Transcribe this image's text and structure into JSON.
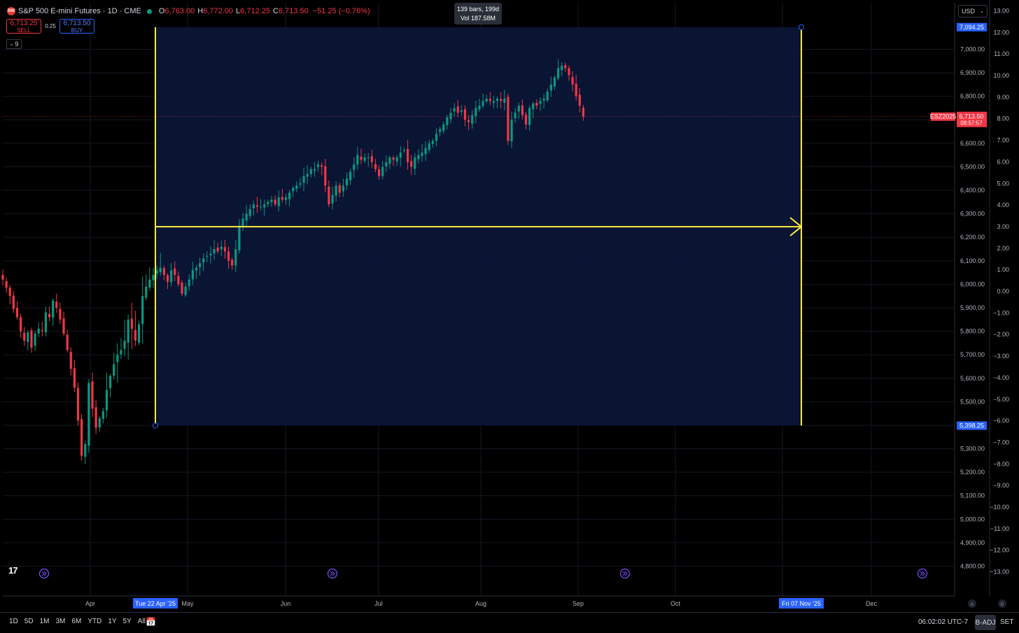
{
  "header": {
    "symbol_badge": "500",
    "title": "S&P 500 E-mini Futures · 1D · CME",
    "open_label": "O",
    "open_value": "6,763.00",
    "high_label": "H",
    "high_value": "6,772.00",
    "low_label": "L",
    "low_value": "6,712.25",
    "close_label": "C",
    "close_value": "6,713.50",
    "change": "−51.25 (−0.76%)"
  },
  "trade": {
    "sell_price": "6,713.25",
    "sell_label": "SELL",
    "spread": "0.25",
    "buy_price": "6,713.50",
    "buy_label": "BUY"
  },
  "indicators_count": "9",
  "measure_tooltip": {
    "line1": "139 bars, 199d",
    "line2": "Vol 187.58M"
  },
  "currency": "USD",
  "colors": {
    "up": "#089981",
    "down": "#f23645",
    "measure": "#ffeb3b",
    "range_fill": "#0b1536",
    "accent": "#2962ff"
  },
  "chart_data": {
    "type": "candlestick",
    "y_range": [
      4750,
      7150
    ],
    "price_ticks": [
      "4,800.00",
      "4,900.00",
      "5,000.00",
      "5,100.00",
      "5,200.00",
      "5,300.00",
      "5,400.00",
      "5,500.00",
      "5,600.00",
      "5,700.00",
      "5,800.00",
      "5,900.00",
      "6,000.00",
      "6,100.00",
      "6,200.00",
      "6,300.00",
      "6,400.00",
      "6,500.00",
      "6,600.00",
      "6,700.00",
      "6,800.00",
      "6,900.00",
      "7,000.00"
    ],
    "pct_ticks": [
      "−13.00",
      "−12.00",
      "−11.00",
      "−10.00",
      "−9.00",
      "−8.00",
      "−7.00",
      "−6.00",
      "−5.00",
      "−4.00",
      "−3.00",
      "−2.00",
      "−1.00",
      "0.00",
      "1.00",
      "2.00",
      "3.00",
      "4.00",
      "5.00",
      "6.00",
      "7.00",
      "8.00",
      "9.00",
      "10.00",
      "11.00",
      "12.00",
      "13.00"
    ],
    "x_labels": [
      "Apr",
      "May",
      "Jun",
      "Jul",
      "Aug",
      "Sep",
      "Oct",
      "Dec"
    ],
    "last_price": {
      "symbol": "ESZ2025",
      "price": "6,713.50",
      "countdown": "08:57:57",
      "value": 6713.5
    },
    "range": {
      "start_label": "Tue 22 Apr '25",
      "end_label": "Fri 07 Nov '25",
      "high_label": "7,094.25",
      "high": 7094.25,
      "low_label": "5,398.25",
      "low": 5398.25,
      "bars": 139,
      "days": 199,
      "volume": "187.58M"
    },
    "closes": [
      6020,
      5985,
      5950,
      5895,
      5860,
      5800,
      5760,
      5795,
      5730,
      5790,
      5810,
      5800,
      5880,
      5860,
      5930,
      5900,
      5850,
      5790,
      5720,
      5640,
      5560,
      5420,
      5270,
      5320,
      5580,
      5470,
      5390,
      5430,
      5460,
      5550,
      5610,
      5660,
      5700,
      5720,
      5760,
      5850,
      5810,
      5760,
      5830,
      5950,
      5990,
      6020,
      6040,
      6060,
      6070,
      6040,
      6010,
      6060,
      6040,
      6000,
      5960,
      5990,
      6020,
      6060,
      6070,
      6090,
      6110,
      6120,
      6130,
      6150,
      6140,
      6160,
      6140,
      6100,
      6080,
      6150,
      6250,
      6280,
      6300,
      6320,
      6340,
      6330,
      6330,
      6340,
      6350,
      6360,
      6340,
      6370,
      6360,
      6370,
      6390,
      6410,
      6420,
      6430,
      6460,
      6470,
      6490,
      6490,
      6510,
      6500,
      6420,
      6340,
      6380,
      6420,
      6390,
      6420,
      6450,
      6480,
      6510,
      6550,
      6530,
      6540,
      6540,
      6520,
      6490,
      6460,
      6500,
      6520,
      6540,
      6530,
      6540,
      6560,
      6570,
      6520,
      6500,
      6540,
      6550,
      6560,
      6580,
      6600,
      6610,
      6640,
      6660,
      6680,
      6710,
      6730,
      6750,
      6730,
      6740,
      6700,
      6690,
      6720,
      6750,
      6760,
      6780,
      6790,
      6780,
      6780,
      6790,
      6780,
      6790,
      6610,
      6700,
      6730,
      6760,
      6720,
      6680,
      6750,
      6770,
      6760,
      6780,
      6790,
      6820,
      6850,
      6880,
      6920,
      6930,
      6920,
      6890,
      6850,
      6800,
      6760,
      6713.5
    ]
  }
}
